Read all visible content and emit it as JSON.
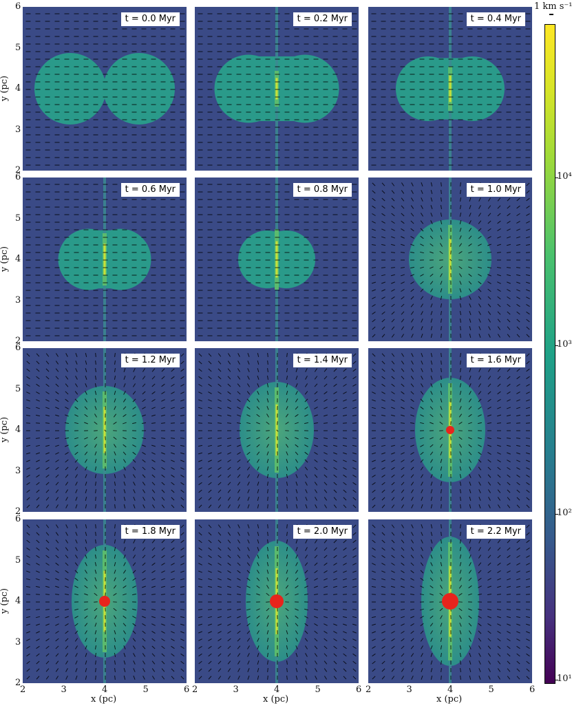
{
  "figure": {
    "panels": [
      {
        "label": "t = 0.0 Myr",
        "stage": 0
      },
      {
        "label": "t = 0.2 Myr",
        "stage": 1
      },
      {
        "label": "t = 0.4 Myr",
        "stage": 2
      },
      {
        "label": "t = 0.6 Myr",
        "stage": 3
      },
      {
        "label": "t = 0.8 Myr",
        "stage": 4
      },
      {
        "label": "t = 1.0 Myr",
        "stage": 5
      },
      {
        "label": "t = 1.2 Myr",
        "stage": 6
      },
      {
        "label": "t = 1.4 Myr",
        "stage": 7
      },
      {
        "label": "t = 1.6 Myr",
        "stage": 8
      },
      {
        "label": "t = 1.8 Myr",
        "stage": 9
      },
      {
        "label": "t = 2.0 Myr",
        "stage": 10
      },
      {
        "label": "t = 2.2 Myr",
        "stage": 11
      }
    ],
    "axes": {
      "xlabel": "x (pc)",
      "ylabel": "y (pc)",
      "x_ticks": [
        "2",
        "3",
        "4",
        "5",
        "6"
      ],
      "y_ticks": [
        "6",
        "5",
        "4",
        "3",
        "2"
      ]
    },
    "colorbar": {
      "unit_label": "1 km s⁻¹",
      "tick_labels": [
        "10⁴",
        "10³",
        "10²",
        "10¹"
      ],
      "scale": "log",
      "colormap": "viridis"
    },
    "colors": {
      "background_gas": "#3a4a86",
      "cloud": "#2a9a8a",
      "filament": "#c8e03a",
      "sink": "#e8241c"
    }
  }
}
